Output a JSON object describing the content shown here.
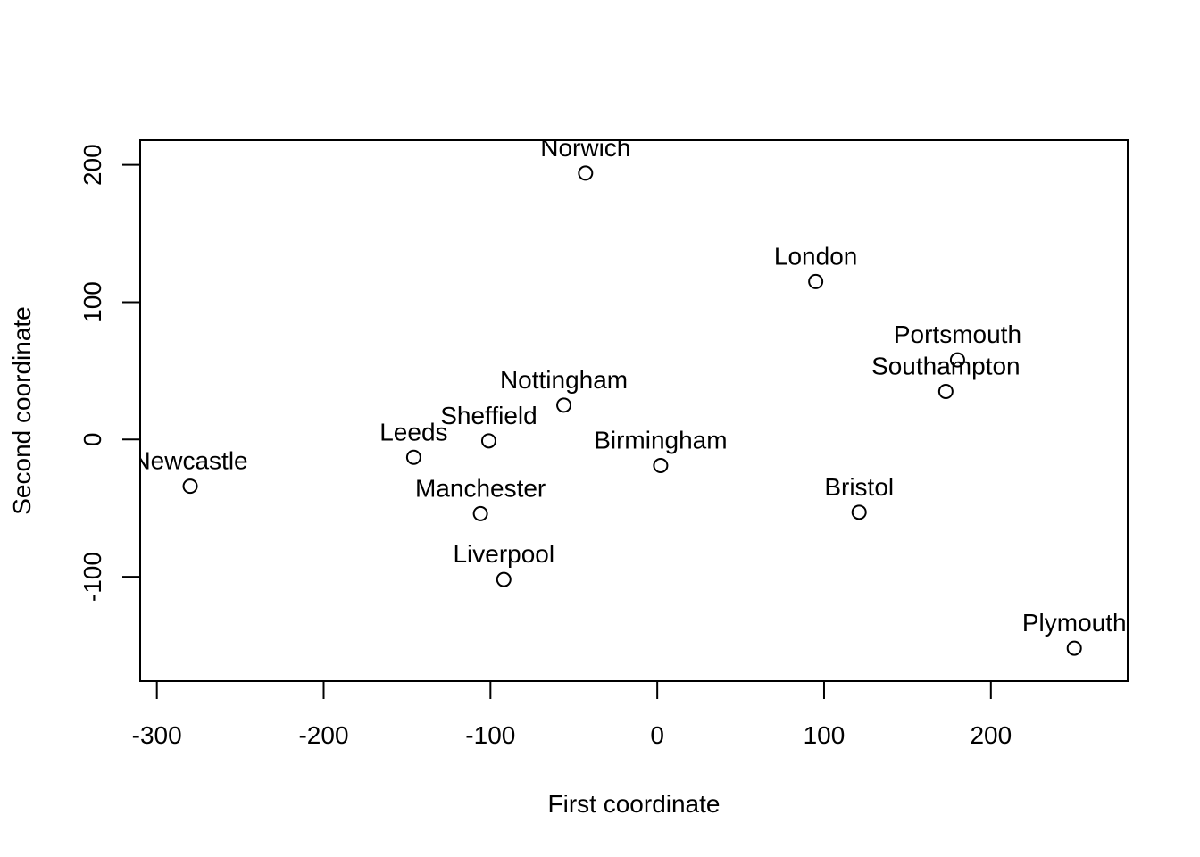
{
  "chart_data": {
    "type": "scatter",
    "title": "",
    "xlabel": "First coordinate",
    "ylabel": "Second coordinate",
    "xlim": [
      -310,
      282
    ],
    "ylim": [
      -176,
      218
    ],
    "x_ticks": [
      -300,
      -200,
      -100,
      0,
      100,
      200
    ],
    "x_tick_labels": [
      "-300",
      "-200",
      "-100",
      "0",
      "100",
      "200"
    ],
    "y_ticks": [
      -100,
      0,
      100,
      200
    ],
    "y_tick_labels": [
      "-100",
      "0",
      "100",
      "200"
    ],
    "grid": false,
    "marker": "open-circle",
    "points": [
      {
        "label": "Norwich",
        "x": -43,
        "y": 194
      },
      {
        "label": "London",
        "x": 95,
        "y": 115
      },
      {
        "label": "Portsmouth",
        "x": 180,
        "y": 58
      },
      {
        "label": "Southampton",
        "x": 173,
        "y": 35
      },
      {
        "label": "Nottingham",
        "x": -56,
        "y": 25
      },
      {
        "label": "Sheffield",
        "x": -101,
        "y": -1
      },
      {
        "label": "Leeds",
        "x": -146,
        "y": -13
      },
      {
        "label": "Birmingham",
        "x": 2,
        "y": -19
      },
      {
        "label": "Newcastle",
        "x": -280,
        "y": -34
      },
      {
        "label": "Manchester",
        "x": -106,
        "y": -54
      },
      {
        "label": "Bristol",
        "x": 121,
        "y": -53
      },
      {
        "label": "Liverpool",
        "x": -92,
        "y": -102
      },
      {
        "label": "Plymouth",
        "x": 250,
        "y": -152
      }
    ]
  }
}
